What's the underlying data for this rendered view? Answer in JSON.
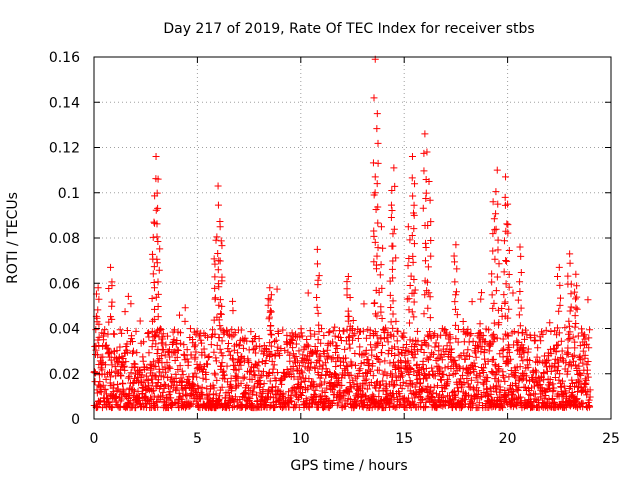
{
  "chart_data": {
    "type": "scatter",
    "title": "Day 217 of 2019, Rate Of TEC Index for receiver stbs",
    "xlabel": "GPS time / hours",
    "ylabel": "ROTI / TECUs",
    "xlim": [
      0,
      25
    ],
    "ylim": [
      0,
      0.16
    ],
    "x_ticks": [
      0,
      5,
      10,
      15,
      20,
      25
    ],
    "x_tick_labels": [
      "0",
      "5",
      "10",
      "15",
      "20",
      "25"
    ],
    "y_ticks": [
      0,
      0.02,
      0.04,
      0.06,
      0.08,
      0.1,
      0.12,
      0.14,
      0.16
    ],
    "y_tick_labels": [
      "0",
      "0.02",
      "0.04",
      "0.06",
      "0.08",
      "0.1",
      "0.12",
      "0.14",
      "0.16"
    ],
    "grid": true,
    "marker": "+",
    "marker_color": "#ff0000",
    "series": [
      {
        "name": "ROTI",
        "x_range": [
          0,
          24
        ],
        "typical_range": [
          0.005,
          0.04
        ],
        "spikes": [
          {
            "x": 0.2,
            "y": 0.058
          },
          {
            "x": 0.8,
            "y": 0.067
          },
          {
            "x": 2.9,
            "y": 0.087
          },
          {
            "x": 3.0,
            "y": 0.116
          },
          {
            "x": 3.1,
            "y": 0.106
          },
          {
            "x": 5.9,
            "y": 0.079
          },
          {
            "x": 6.0,
            "y": 0.103
          },
          {
            "x": 6.1,
            "y": 0.085
          },
          {
            "x": 8.5,
            "y": 0.058
          },
          {
            "x": 10.8,
            "y": 0.075
          },
          {
            "x": 12.3,
            "y": 0.063
          },
          {
            "x": 13.6,
            "y": 0.159
          },
          {
            "x": 13.7,
            "y": 0.135
          },
          {
            "x": 13.6,
            "y": 0.107
          },
          {
            "x": 13.9,
            "y": 0.085
          },
          {
            "x": 14.4,
            "y": 0.101
          },
          {
            "x": 14.5,
            "y": 0.111
          },
          {
            "x": 15.2,
            "y": 0.085
          },
          {
            "x": 15.4,
            "y": 0.116
          },
          {
            "x": 15.5,
            "y": 0.104
          },
          {
            "x": 16.0,
            "y": 0.126
          },
          {
            "x": 16.1,
            "y": 0.118
          },
          {
            "x": 16.2,
            "y": 0.105
          },
          {
            "x": 17.5,
            "y": 0.077
          },
          {
            "x": 19.3,
            "y": 0.096
          },
          {
            "x": 19.5,
            "y": 0.11
          },
          {
            "x": 19.9,
            "y": 0.107
          },
          {
            "x": 20.0,
            "y": 0.095
          },
          {
            "x": 20.6,
            "y": 0.076
          },
          {
            "x": 22.5,
            "y": 0.067
          },
          {
            "x": 23.0,
            "y": 0.073
          },
          {
            "x": 23.3,
            "y": 0.064
          }
        ]
      }
    ]
  }
}
